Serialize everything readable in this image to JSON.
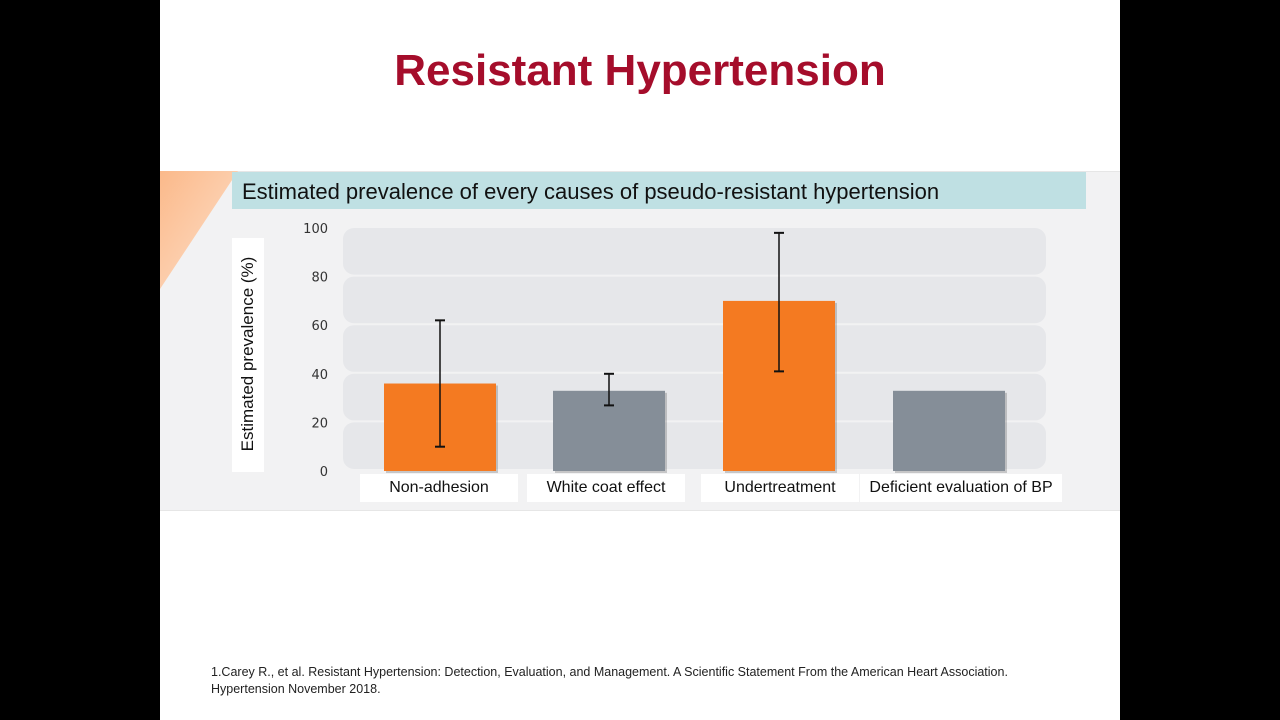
{
  "slide": {
    "title": "Resistant Hypertension",
    "footnote": "1.Carey R., et al. Resistant Hypertension: Detection, Evaluation, and Management. A Scientific Statement From the American Heart Association. Hypertension November 2018."
  },
  "colors": {
    "title": "#a50d2b",
    "orange_bar": "#f47a21",
    "gray_bar": "#858e98",
    "title_band": "#bfe0e3"
  },
  "chart_data": {
    "type": "bar",
    "title": "Estimated prevalence of every causes of pseudo-resistant hypertension",
    "xlabel": "",
    "ylabel": "Estimated prevalence (%)",
    "ylim": [
      0,
      100
    ],
    "yticks": [
      100,
      80,
      60,
      40,
      20,
      0
    ],
    "grid": true,
    "categories": [
      "Non-adhesion",
      "White coat effect",
      "Undertreatment",
      "Deficient evaluation of BP"
    ],
    "values": [
      36,
      33,
      70,
      33
    ],
    "error_bars": [
      {
        "low": 10,
        "high": 62
      },
      {
        "low": 27,
        "high": 40
      },
      {
        "low": 41,
        "high": 98
      },
      null
    ],
    "bar_colors": [
      "orange",
      "gray",
      "orange",
      "gray"
    ]
  }
}
